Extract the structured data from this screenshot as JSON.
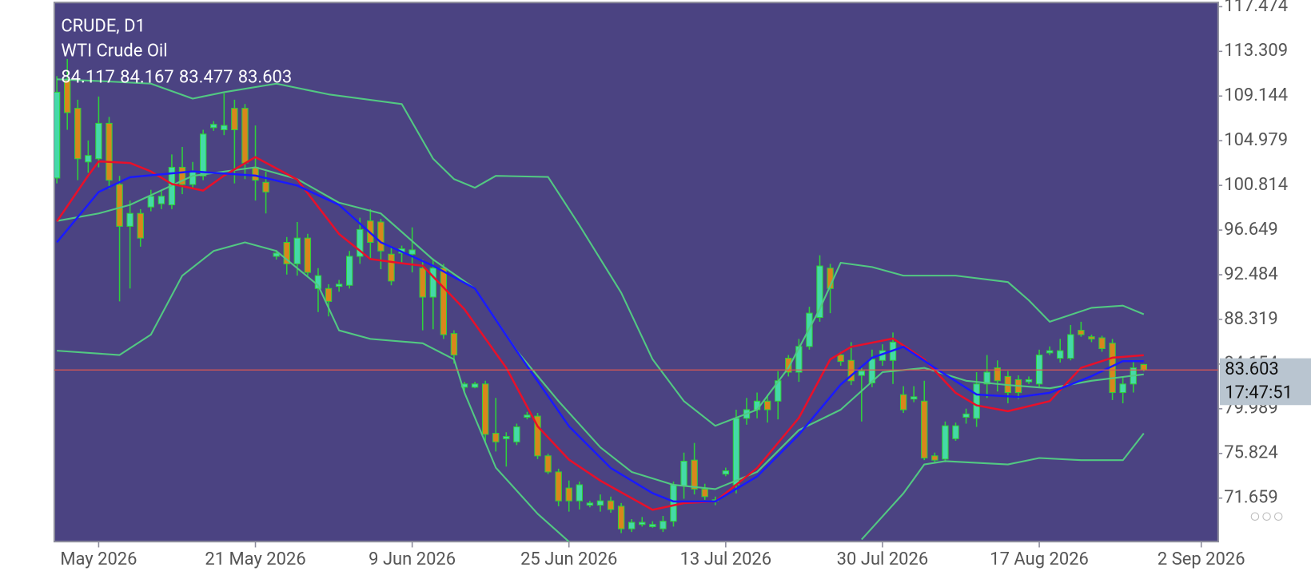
{
  "chart_data": {
    "type": "candlestick",
    "title": "CRUDE, D1",
    "subtitle": "WTI Crude Oil",
    "x": [
      0,
      1,
      2,
      3,
      4,
      5,
      6,
      7,
      8,
      9,
      10,
      11,
      12,
      13,
      14,
      15,
      16,
      17,
      18,
      19,
      20,
      21,
      22,
      23,
      24,
      25,
      26,
      27,
      28,
      29,
      30,
      31,
      32,
      33,
      34,
      35,
      36,
      37,
      38,
      39,
      40,
      41,
      42,
      43,
      44,
      45,
      46,
      47,
      48,
      49,
      50,
      51,
      52,
      53,
      54,
      55,
      56,
      57,
      58,
      59,
      60,
      61,
      62,
      63,
      64,
      65,
      66,
      67,
      68,
      69,
      70,
      71,
      72,
      73,
      74,
      75,
      76,
      77,
      78,
      79,
      80,
      81,
      82,
      83,
      84,
      85,
      86,
      87,
      88,
      89,
      90,
      91,
      92,
      93,
      94,
      95,
      96,
      97,
      98,
      99,
      100,
      101,
      102,
      103,
      104
    ],
    "open": [
      101.5,
      110.7,
      108,
      103,
      103.3,
      106.6,
      100.9,
      97,
      98.2,
      98.8,
      99.1,
      99,
      102.5,
      100.9,
      101.7,
      106.2,
      106,
      108,
      108,
      102.5,
      101.1,
      94.2,
      95.5,
      93.5,
      95.9,
      91.2,
      91.2,
      91.4,
      91.5,
      94.2,
      97.5,
      97.4,
      94.4,
      94.5,
      94.4,
      93.1,
      90.4,
      93.1,
      87,
      82,
      82,
      82.3,
      77.7,
      77.2,
      76.9,
      79.2,
      79.3,
      75.6,
      74.1,
      72.6,
      71.4,
      71,
      71,
      71.4,
      70.9,
      68.8,
      69.2,
      69,
      68.8,
      69.5,
      72.8,
      75.2,
      72.5,
      71.4,
      73.9,
      72.9,
      79.1,
      79.9,
      80.7,
      80.7,
      84.7,
      83.4,
      85.8,
      88.5,
      93.1,
      85,
      84.5,
      83.1,
      82.4,
      84.5,
      84.5,
      81.3,
      80.9,
      80.7,
      75.6,
      75.3,
      77.2,
      79.2,
      79.1,
      82.3,
      83.8,
      83,
      82.7,
      82.5,
      82.3,
      85.2,
      84.7,
      84.7,
      87.3,
      86.7,
      86.6,
      86.1,
      81.5,
      82.3,
      84.117
    ],
    "high": [
      111,
      112.6,
      108.8,
      105,
      109.1,
      107.2,
      101.7,
      99.4,
      98.6,
      100.4,
      100.3,
      103.7,
      104.4,
      103,
      106,
      106.8,
      109.4,
      108.8,
      108.4,
      106.4,
      102.1,
      94.8,
      96,
      97.4,
      96.3,
      93.1,
      91.6,
      92,
      94.7,
      97.8,
      98.6,
      97.7,
      95.1,
      95.2,
      96.9,
      93.9,
      94,
      93.5,
      87.3,
      82.5,
      82.5,
      82.6,
      81,
      77.8,
      78.6,
      79.7,
      79.6,
      75.8,
      74.4,
      73.3,
      73.2,
      71.4,
      72,
      71.8,
      71.2,
      69.7,
      69.9,
      69.5,
      70,
      73.2,
      75.9,
      76.8,
      73,
      71.8,
      74.5,
      79.9,
      81,
      81.5,
      81.3,
      83.5,
      85,
      86.5,
      89.5,
      94.3,
      93.5,
      85.3,
      86.2,
      84,
      85.5,
      86,
      87.1,
      82.1,
      82.1,
      82.6,
      75.9,
      78.8,
      78.7,
      80,
      83.4,
      85,
      84.5,
      83.5,
      83.1,
      83,
      85.5,
      85.8,
      86.5,
      87.8,
      88.1,
      86.9,
      86.8,
      86.5,
      83,
      84.5,
      84.167
    ],
    "low": [
      101,
      106,
      101.3,
      102,
      102.5,
      100.5,
      90,
      91.2,
      95.1,
      98.4,
      98.6,
      98.6,
      100,
      100.5,
      101.3,
      105.9,
      105.5,
      101,
      101.4,
      99.4,
      98.2,
      93.9,
      92.5,
      92.4,
      92.4,
      89,
      88.6,
      90.9,
      91.2,
      93.5,
      94,
      93,
      91.5,
      93.5,
      92.7,
      87.3,
      87.4,
      86.5,
      84.2,
      81.5,
      81.9,
      76.8,
      76,
      74.6,
      76.6,
      79,
      75.3,
      73.9,
      70.9,
      70.4,
      70.6,
      70.8,
      70.4,
      70.3,
      68.4,
      68.5,
      69,
      68.9,
      68.5,
      69,
      71.6,
      72,
      71.5,
      71,
      73.7,
      72.1,
      78.5,
      79.1,
      78.7,
      79,
      83,
      82.5,
      85.5,
      88.1,
      88.9,
      84,
      82.2,
      78.8,
      82,
      84,
      82.3,
      79.6,
      80.6,
      75.2,
      75,
      75,
      77,
      78.6,
      78.3,
      81,
      81.6,
      80.5,
      80.9,
      82.3,
      82,
      85,
      84.3,
      84.5,
      86.7,
      86.2,
      85.3,
      80.8,
      80.5,
      81.5,
      83.477
    ],
    "close": [
      109.5,
      107.6,
      103.3,
      103.6,
      106.6,
      101.3,
      97,
      98.2,
      95.9,
      99.8,
      99.8,
      102.5,
      100.9,
      102.1,
      105.6,
      106.5,
      106.4,
      106,
      102.9,
      101.3,
      100.2,
      94.5,
      93.5,
      95.9,
      92.7,
      92.4,
      90,
      91.6,
      94.2,
      96.7,
      95.5,
      94.7,
      91.9,
      94.9,
      94.8,
      90.4,
      93.1,
      86.9,
      85,
      82.3,
      82.3,
      77.6,
      76.9,
      77.4,
      78.3,
      79.4,
      75.6,
      74.1,
      71.4,
      71.4,
      72.9,
      71.2,
      71.4,
      70.6,
      68.8,
      69.4,
      69.4,
      69.2,
      69.5,
      72.9,
      75.1,
      72.5,
      71.8,
      71.5,
      74.2,
      79.1,
      79.9,
      80.7,
      79.9,
      82.6,
      83.4,
      85.8,
      88.9,
      93.3,
      91.2,
      84.4,
      82.6,
      83.5,
      84.6,
      85.4,
      86.2,
      79.9,
      81.1,
      75.4,
      75.2,
      78.4,
      78.4,
      79.5,
      82.3,
      83.4,
      82.6,
      81.5,
      81.5,
      82.7,
      85,
      85.4,
      85.4,
      86.9,
      86.9,
      86.5,
      85.6,
      81.5,
      82.3,
      83.8,
      83.603
    ],
    "up_color": "#45d9a8",
    "down_color": "#d9861c",
    "wick_color": "#2fd13a",
    "overlays": [
      {
        "color": "#52c882",
        "x": [
          0,
          5,
          9,
          13,
          16,
          21,
          26,
          33,
          36,
          38,
          40,
          42,
          47,
          50,
          54,
          57,
          60,
          63,
          67,
          70,
          73,
          75,
          78,
          81,
          86,
          91,
          93,
          95,
          99,
          102,
          104
        ],
        "values": [
          110.7,
          110.5,
          110.3,
          108.9,
          109.5,
          110.3,
          109.3,
          108.4,
          103.3,
          101.4,
          100.6,
          101.7,
          101.6,
          97.1,
          90.8,
          84.6,
          80.7,
          78.4,
          79.9,
          83.8,
          89.3,
          93.6,
          93.2,
          92.4,
          92.4,
          91.8,
          90.1,
          88.1,
          89.4,
          89.6,
          88.8
        ]
      },
      {
        "color": "#52c882",
        "x": [
          0,
          4,
          7,
          13,
          19,
          23,
          27,
          31,
          36,
          40,
          44,
          48,
          52,
          55,
          59,
          63,
          67,
          71,
          75,
          79,
          83,
          87,
          91,
          95,
          99,
          104
        ],
        "values": [
          97.5,
          98.2,
          99.0,
          101.7,
          102.5,
          101.4,
          99.2,
          98.2,
          93.9,
          91.2,
          85.4,
          80.7,
          76.4,
          74.1,
          72.9,
          72.5,
          74.1,
          78.0,
          79.9,
          83.4,
          83.8,
          82.6,
          82.2,
          81.9,
          82.6,
          83.2
        ]
      },
      {
        "color": "#52c882",
        "x": [
          0,
          6,
          9,
          12,
          15,
          18,
          21,
          25,
          27,
          30,
          35,
          38,
          39,
          42,
          46,
          49,
          63,
          77,
          81,
          83,
          85,
          91,
          94,
          98,
          102,
          104
        ],
        "values": [
          85.4,
          85.0,
          86.9,
          92.4,
          94.7,
          95.5,
          94.7,
          91.5,
          87.3,
          86.5,
          86.1,
          84.6,
          81.5,
          74.5,
          70.2,
          67.6,
          null,
          67.8,
          72.1,
          74.8,
          75.1,
          74.8,
          75.4,
          75.2,
          75.2,
          77.7
        ]
      },
      {
        "color": "#e8102a",
        "x": [
          0,
          3,
          4,
          7,
          9,
          11,
          14,
          16,
          19,
          23,
          27,
          30,
          33,
          35,
          39,
          43,
          46,
          49,
          52,
          57,
          60,
          63,
          67,
          71,
          74,
          76,
          80,
          83,
          86,
          88,
          91,
          95,
          98,
          101,
          104
        ],
        "values": [
          97.45,
          101.73,
          103.05,
          102.9,
          102.12,
          100.95,
          100.33,
          101.73,
          103.45,
          101.35,
          96.28,
          93.94,
          93.55,
          93.32,
          89.27,
          83.81,
          78.36,
          75.24,
          73.29,
          70.57,
          71.19,
          71.35,
          74.46,
          79.14,
          84.59,
          85.76,
          86.54,
          84.59,
          81.47,
          80.31,
          79.76,
          80.7,
          83.81,
          84.75,
          84.98
        ]
      },
      {
        "color": "#1a1aff",
        "x": [
          0,
          4,
          7,
          13,
          19,
          23,
          27,
          31,
          36,
          40,
          44,
          49,
          53,
          57,
          59,
          63,
          67,
          71,
          75,
          78,
          81,
          84,
          88,
          92,
          95,
          99,
          102,
          104
        ],
        "values": [
          95.5,
          100.2,
          101.58,
          102.12,
          101.73,
          100.8,
          99.0,
          95.5,
          93.32,
          91.2,
          85.37,
          78.36,
          74.46,
          72.12,
          71.35,
          71.35,
          73.68,
          77.58,
          82.25,
          84.75,
          85.76,
          83.81,
          81.32,
          81.09,
          81.48,
          83.03,
          84.43,
          84.43
        ]
      }
    ],
    "price_line": {
      "color": "#e0584f",
      "countdown": "17:47:51"
    },
    "xlim": [
      -0.24,
      111.12
    ],
    "xticks": [
      {
        "value": 4,
        "label": "May 2026"
      },
      {
        "value": 19,
        "label": "21 May 2026"
      },
      {
        "value": 34,
        "label": "9 Jun 2026"
      },
      {
        "value": 49,
        "label": "25 Jun 2026"
      },
      {
        "value": 64,
        "label": "13 Jul 2026"
      },
      {
        "value": 79,
        "label": "30 Jul 2026"
      },
      {
        "value": 94,
        "label": "17 Aug 2026"
      },
      {
        "value": 109.5,
        "label": "2 Sep 2026"
      }
    ],
    "ylim": [
      67.607,
      117.864
    ],
    "yticks": [
      117.474,
      113.309,
      109.144,
      104.979,
      100.814,
      96.649,
      92.484,
      88.319,
      84.154,
      79.989,
      75.824,
      71.659
    ]
  }
}
